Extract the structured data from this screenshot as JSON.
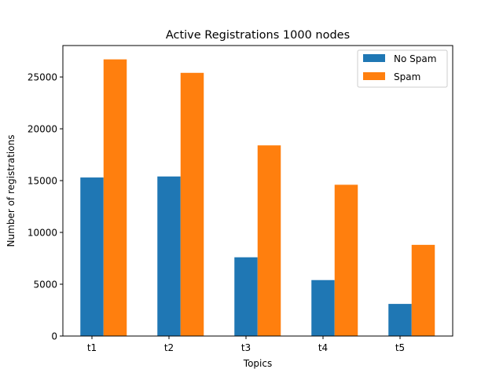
{
  "chart_data": {
    "type": "bar",
    "title": "Active Registrations 1000 nodes",
    "xlabel": "Topics",
    "ylabel": "Number of registrations",
    "categories": [
      "t1",
      "t2",
      "t3",
      "t4",
      "t5"
    ],
    "series": [
      {
        "name": "No Spam",
        "color": "#1f77b4",
        "values": [
          15300,
          15400,
          7600,
          5400,
          3100
        ]
      },
      {
        "name": "Spam",
        "color": "#ff7f0e",
        "values": [
          26700,
          25400,
          18400,
          14600,
          8800
        ]
      }
    ],
    "ylim": [
      0,
      28035
    ],
    "yticks": [
      0,
      5000,
      10000,
      15000,
      20000,
      25000
    ],
    "legend_position": "top-right",
    "grid": false
  }
}
